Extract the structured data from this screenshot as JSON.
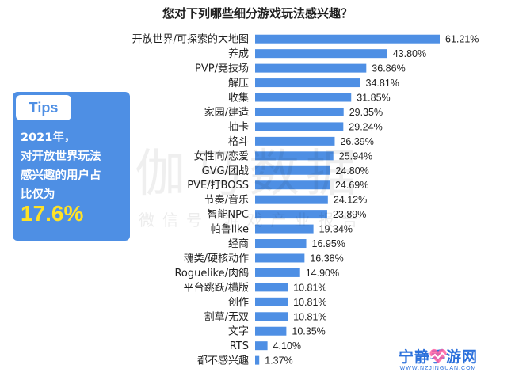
{
  "chart_data": {
    "type": "bar",
    "orientation": "horizontal",
    "title": "您对下列哪些细分游戏玩法感兴趣？",
    "categories": [
      "开放世界/可探索的大地图",
      "养成",
      "PVP/竞技场",
      "解压",
      "收集",
      "家园/建造",
      "抽卡",
      "格斗",
      "女性向/恋爱",
      "GVG/团战",
      "PVE/打BOSS",
      "节奏/音乐",
      "智能NPC",
      "帕鲁like",
      "经商",
      "魂类/硬核动作",
      "Roguelike/肉鸽",
      "平台跳跃/横版",
      "创作",
      "割草/无双",
      "文字",
      "RTS",
      "都不感兴趣"
    ],
    "values": [
      61.21,
      43.8,
      36.86,
      34.81,
      31.85,
      29.35,
      29.24,
      26.39,
      25.94,
      24.8,
      24.69,
      24.12,
      23.89,
      19.34,
      16.95,
      16.38,
      14.9,
      10.81,
      10.81,
      10.81,
      10.35,
      4.1,
      1.37
    ],
    "value_labels": [
      "61.21%",
      "43.80%",
      "36.86%",
      "34.81%",
      "31.85%",
      "29.35%",
      "29.24%",
      "26.39%",
      "25.94%",
      "24.80%",
      "24.69%",
      "24.12%",
      "23.89%",
      "19.34%",
      "16.95%",
      "16.38%",
      "14.90%",
      "10.81%",
      "10.81%",
      "10.81%",
      "10.35%",
      "4.10%",
      "1.37%"
    ],
    "xlim": [
      0,
      61.21
    ],
    "grid": false,
    "bar_color": "#4e8fe4"
  },
  "tips": {
    "tag": "Tips",
    "lines": [
      "2021年，",
      "对开放世界玩法",
      "感兴趣的用户占",
      "比仅为"
    ],
    "value": "17.6%"
  },
  "watermark": {
    "main": "伽马数据",
    "sub": "微信号 游戏产业报告"
  },
  "brand": {
    "name": "宁静手游网",
    "url": "WWW.NZJINGUAN.COM"
  }
}
